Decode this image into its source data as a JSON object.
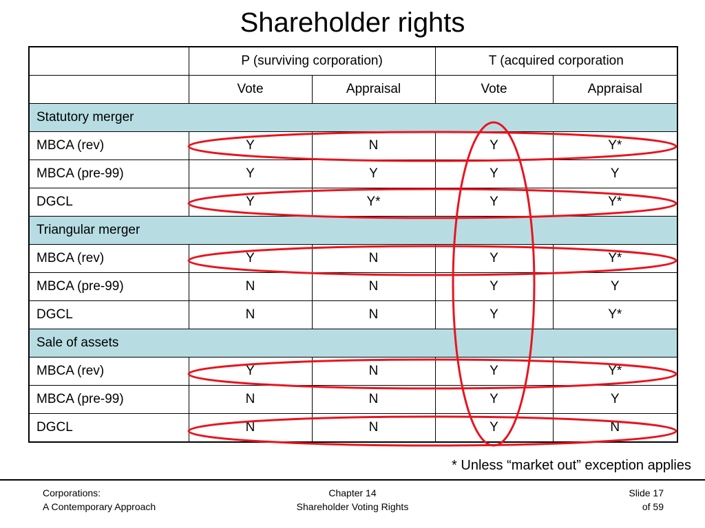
{
  "title": "Shareholder rights",
  "header": {
    "p_group": "P (surviving corporation)",
    "t_group": "T (acquired corporation",
    "p_vote": "Vote",
    "p_appraisal": "Appraisal",
    "t_vote": "Vote",
    "t_appraisal": "Appraisal"
  },
  "sections": [
    {
      "name": "Statutory merger",
      "rows": [
        {
          "label": "MBCA (rev)",
          "cells": [
            "Y",
            "N",
            "Y",
            "Y*"
          ]
        },
        {
          "label": "MBCA (pre-99)",
          "cells": [
            "Y",
            "Y",
            "Y",
            "Y"
          ]
        },
        {
          "label": "DGCL",
          "cells": [
            "Y",
            "Y*",
            "Y",
            "Y*"
          ]
        }
      ]
    },
    {
      "name": "Triangular merger",
      "rows": [
        {
          "label": "MBCA (rev)",
          "cells": [
            "Y",
            "N",
            "Y",
            "Y*"
          ]
        },
        {
          "label": "MBCA (pre-99)",
          "cells": [
            "N",
            "N",
            "Y",
            "Y"
          ]
        },
        {
          "label": "DGCL",
          "cells": [
            "N",
            "N",
            "Y",
            "Y*"
          ]
        }
      ]
    },
    {
      "name": "Sale of assets",
      "rows": [
        {
          "label": "MBCA (rev)",
          "cells": [
            "Y",
            "N",
            "Y",
            "Y*"
          ]
        },
        {
          "label": "MBCA (pre-99)",
          "cells": [
            "N",
            "N",
            "Y",
            "Y"
          ]
        },
        {
          "label": "DGCL",
          "cells": [
            "N",
            "N",
            "Y",
            "N"
          ]
        }
      ]
    }
  ],
  "footnote": "* Unless “market out” exception applies",
  "footer": {
    "left_line1": "Corporations:",
    "left_line2": "A Contemporary Approach",
    "center_line1": "Chapter 14",
    "center_line2": "Shareholder Voting Rights",
    "right_line1": "Slide 17",
    "right_line2": "of 59"
  },
  "colors": {
    "section_fill": "#b7dde3",
    "highlight_ellipse": "#e8141e"
  }
}
